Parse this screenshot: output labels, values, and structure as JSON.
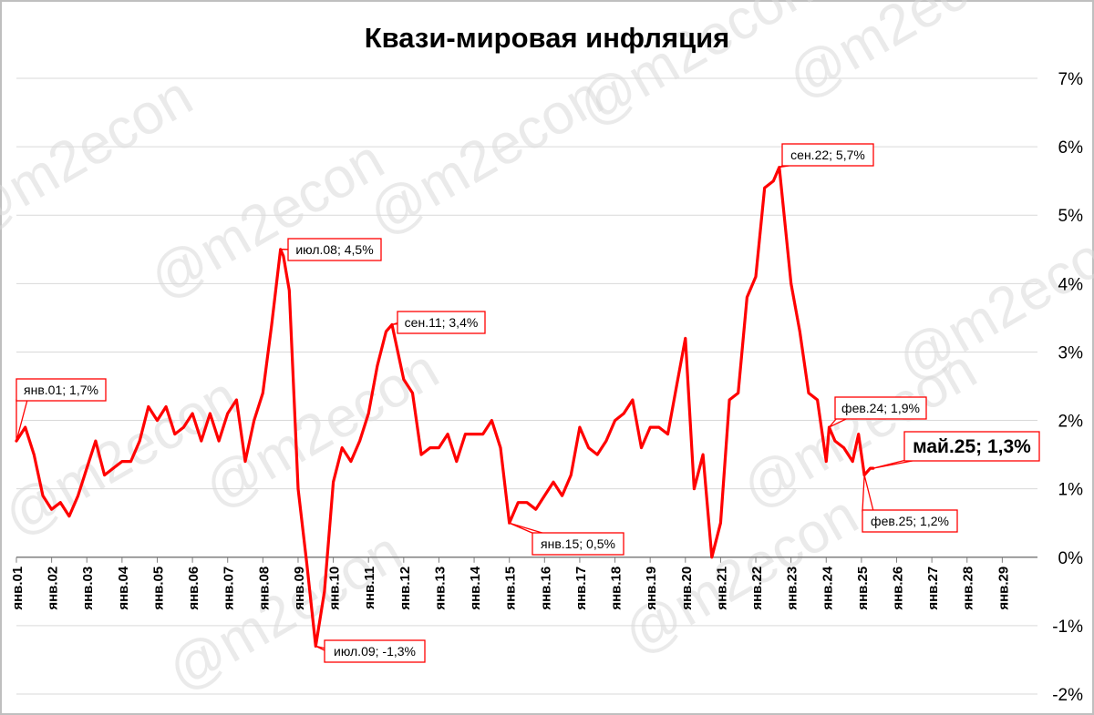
{
  "chart_data": {
    "type": "line",
    "title": "Квази-мировая инфляция",
    "watermark": "@m2econ",
    "xlabel": "",
    "ylabel": "",
    "ylim": [
      -2,
      7
    ],
    "y_ticks": [
      "7%",
      "6%",
      "5%",
      "4%",
      "3%",
      "2%",
      "1%",
      "0%",
      "-1%",
      "-2%"
    ],
    "y_tick_values": [
      7,
      6,
      5,
      4,
      3,
      2,
      1,
      0,
      -1,
      -2
    ],
    "x_ticks": [
      "янв.01",
      "янв.02",
      "янв.03",
      "янв.04",
      "янв.05",
      "янв.06",
      "янв.07",
      "янв.08",
      "янв.09",
      "янв.10",
      "янв.11",
      "янв.12",
      "янв.13",
      "янв.14",
      "янв.15",
      "янв.16",
      "янв.17",
      "янв.18",
      "янв.19",
      "янв.20",
      "янв.21",
      "янв.22",
      "янв.23",
      "янв.24",
      "янв.25",
      "янв.26",
      "янв.27",
      "янв.28",
      "янв.29"
    ],
    "x_range": [
      "янв.01",
      "дек.29"
    ],
    "line_color": "#ff0000",
    "grid": "horizontal",
    "series": [
      {
        "name": "",
        "color": "#ff0000",
        "points": [
          [
            "янв.01",
            1.7
          ],
          [
            "апр.01",
            1.9
          ],
          [
            "июл.01",
            1.5
          ],
          [
            "окт.01",
            0.9
          ],
          [
            "янв.02",
            0.7
          ],
          [
            "апр.02",
            0.8
          ],
          [
            "июл.02",
            0.6
          ],
          [
            "окт.02",
            0.9
          ],
          [
            "янв.03",
            1.3
          ],
          [
            "апр.03",
            1.7
          ],
          [
            "июл.03",
            1.2
          ],
          [
            "окт.03",
            1.3
          ],
          [
            "янв.04",
            1.4
          ],
          [
            "апр.04",
            1.4
          ],
          [
            "июл.04",
            1.7
          ],
          [
            "окт.04",
            2.2
          ],
          [
            "янв.05",
            2.0
          ],
          [
            "апр.05",
            2.2
          ],
          [
            "июл.05",
            1.8
          ],
          [
            "окт.05",
            1.9
          ],
          [
            "янв.06",
            2.1
          ],
          [
            "апр.06",
            1.7
          ],
          [
            "июл.06",
            2.1
          ],
          [
            "окт.06",
            1.7
          ],
          [
            "янв.07",
            2.1
          ],
          [
            "апр.07",
            2.3
          ],
          [
            "июл.07",
            1.4
          ],
          [
            "окт.07",
            2.0
          ],
          [
            "янв.08",
            2.4
          ],
          [
            "апр.08",
            3.4
          ],
          [
            "июл.08",
            4.5
          ],
          [
            "авг.08",
            4.4
          ],
          [
            "окт.08",
            3.9
          ],
          [
            "янв.09",
            1.0
          ],
          [
            "апр.09",
            -0.1
          ],
          [
            "июл.09",
            -1.3
          ],
          [
            "окт.09",
            -0.5
          ],
          [
            "янв.10",
            1.1
          ],
          [
            "апр.10",
            1.6
          ],
          [
            "июл.10",
            1.4
          ],
          [
            "окт.10",
            1.7
          ],
          [
            "янв.11",
            2.1
          ],
          [
            "апр.11",
            2.8
          ],
          [
            "июл.11",
            3.3
          ],
          [
            "сен.11",
            3.4
          ],
          [
            "янв.12",
            2.6
          ],
          [
            "апр.12",
            2.4
          ],
          [
            "июл.12",
            1.5
          ],
          [
            "окт.12",
            1.6
          ],
          [
            "янв.13",
            1.6
          ],
          [
            "апр.13",
            1.8
          ],
          [
            "июл.13",
            1.4
          ],
          [
            "окт.13",
            1.8
          ],
          [
            "янв.14",
            1.8
          ],
          [
            "апр.14",
            1.8
          ],
          [
            "июл.14",
            2.0
          ],
          [
            "окт.14",
            1.6
          ],
          [
            "янв.15",
            0.5
          ],
          [
            "апр.15",
            0.8
          ],
          [
            "июл.15",
            0.8
          ],
          [
            "окт.15",
            0.7
          ],
          [
            "янв.16",
            0.9
          ],
          [
            "апр.16",
            1.1
          ],
          [
            "июл.16",
            0.9
          ],
          [
            "окт.16",
            1.2
          ],
          [
            "янв.17",
            1.9
          ],
          [
            "апр.17",
            1.6
          ],
          [
            "июл.17",
            1.5
          ],
          [
            "окт.17",
            1.7
          ],
          [
            "янв.18",
            2.0
          ],
          [
            "апр.18",
            2.1
          ],
          [
            "июл.18",
            2.3
          ],
          [
            "окт.18",
            1.6
          ],
          [
            "янв.19",
            1.9
          ],
          [
            "апр.19",
            1.9
          ],
          [
            "июл.19",
            1.8
          ],
          [
            "окт.19",
            2.5
          ],
          [
            "янв.20",
            3.2
          ],
          [
            "апр.20",
            1.0
          ],
          [
            "июл.20",
            1.5
          ],
          [
            "окт.20",
            0.0
          ],
          [
            "янв.21",
            0.5
          ],
          [
            "апр.21",
            2.3
          ],
          [
            "июл.21",
            2.4
          ],
          [
            "окт.21",
            3.8
          ],
          [
            "янв.22",
            4.1
          ],
          [
            "апр.22",
            5.4
          ],
          [
            "июл.22",
            5.5
          ],
          [
            "сен.22",
            5.7
          ],
          [
            "янв.23",
            4.0
          ],
          [
            "апр.23",
            3.3
          ],
          [
            "июл.23",
            2.4
          ],
          [
            "окт.23",
            2.3
          ],
          [
            "янв.24",
            1.4
          ],
          [
            "фев.24",
            1.9
          ],
          [
            "апр.24",
            1.7
          ],
          [
            "июл.24",
            1.6
          ],
          [
            "окт.24",
            1.4
          ],
          [
            "дек.24",
            1.8
          ],
          [
            "фев.25",
            1.2
          ],
          [
            "апр.25",
            1.3
          ],
          [
            "май.25",
            1.3
          ]
        ]
      }
    ],
    "annotations": [
      {
        "label": "янв.01; 1,7%",
        "x": "янв.01",
        "y": 1.7,
        "big": false
      },
      {
        "label": "июл.08; 4,5%",
        "x": "июл.08",
        "y": 4.5,
        "big": false
      },
      {
        "label": "июл.09; -1,3%",
        "x": "июл.09",
        "y": -1.3,
        "big": false
      },
      {
        "label": "сен.11; 3,4%",
        "x": "сен.11",
        "y": 3.4,
        "big": false
      },
      {
        "label": "янв.15; 0,5%",
        "x": "янв.15",
        "y": 0.5,
        "big": false
      },
      {
        "label": "сен.22; 5,7%",
        "x": "сен.22",
        "y": 5.7,
        "big": false
      },
      {
        "label": "фев.24; 1,9%",
        "x": "фев.24",
        "y": 1.9,
        "big": false
      },
      {
        "label": "фев.25; 1,2%",
        "x": "фев.25",
        "y": 1.2,
        "big": false
      },
      {
        "label": "май.25; 1,3%",
        "x": "май.25",
        "y": 1.3,
        "big": true
      }
    ]
  }
}
